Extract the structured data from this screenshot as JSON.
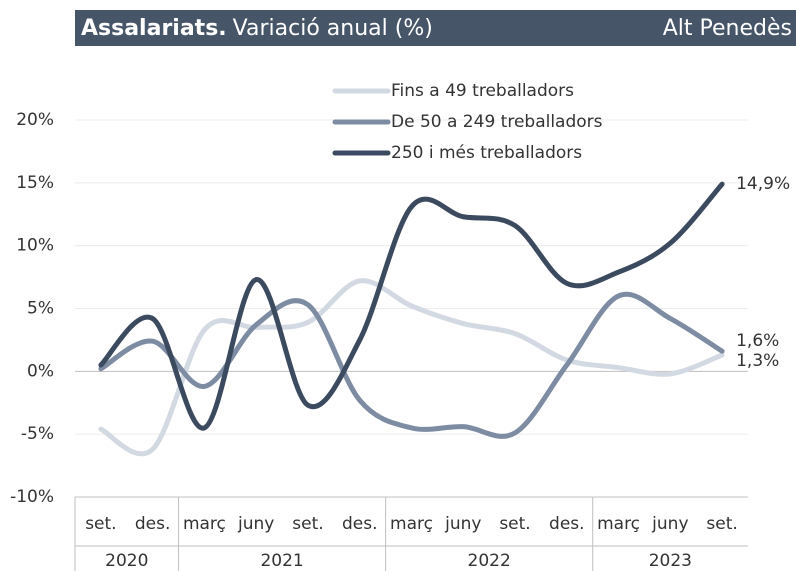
{
  "chart_data": {
    "type": "line",
    "title": "Assalariats.",
    "subtitle": "Variació anual (%)",
    "region": "Alt Penedès",
    "groups": [
      {
        "label": "2020",
        "categories": [
          "set.",
          "des."
        ]
      },
      {
        "label": "2021",
        "categories": [
          "març",
          "juny",
          "set.",
          "des."
        ]
      },
      {
        "label": "2022",
        "categories": [
          "març",
          "juny",
          "set.",
          "des."
        ]
      },
      {
        "label": "2023",
        "categories": [
          "març",
          "juny",
          "set."
        ]
      }
    ],
    "series": [
      {
        "name": "Fins a 49 treballadors",
        "color": "#d3d9e3",
        "values": [
          -4.6,
          -6.2,
          3.3,
          3.5,
          3.9,
          7.2,
          5.2,
          3.8,
          3.0,
          0.9,
          0.3,
          -0.2,
          1.3
        ],
        "value_labels": [
          null,
          null,
          null,
          null,
          null,
          null,
          null,
          null,
          null,
          null,
          null,
          null,
          "1,3%"
        ]
      },
      {
        "name": "De 50 a 249 treballadors",
        "color": "#7d8ca3",
        "values": [
          0.2,
          2.4,
          -1.2,
          3.7,
          5.3,
          -2.3,
          -4.5,
          -4.4,
          -4.9,
          0.5,
          6.0,
          4.2,
          1.6
        ],
        "value_labels": [
          null,
          null,
          null,
          null,
          null,
          null,
          null,
          null,
          null,
          null,
          null,
          null,
          "1,6%"
        ]
      },
      {
        "name": "250 i més treballadors",
        "color": "#3c4a60",
        "values": [
          0.5,
          4.2,
          -4.5,
          7.3,
          -2.7,
          2.5,
          13.1,
          12.3,
          11.6,
          7.0,
          7.9,
          10.2,
          14.9
        ],
        "value_labels": [
          null,
          null,
          null,
          null,
          null,
          null,
          null,
          null,
          null,
          null,
          null,
          null,
          "14,9%"
        ]
      }
    ],
    "ylim": [
      -10,
      20
    ],
    "yticks": [
      {
        "value": -10,
        "label": "-10%"
      },
      {
        "value": -5,
        "label": "-5%"
      },
      {
        "value": 0,
        "label": "0%"
      },
      {
        "value": 5,
        "label": "5%"
      },
      {
        "value": 10,
        "label": "10%"
      },
      {
        "value": 15,
        "label": "15%"
      },
      {
        "value": 20,
        "label": "20%"
      }
    ],
    "grid": true,
    "legend": "top"
  }
}
